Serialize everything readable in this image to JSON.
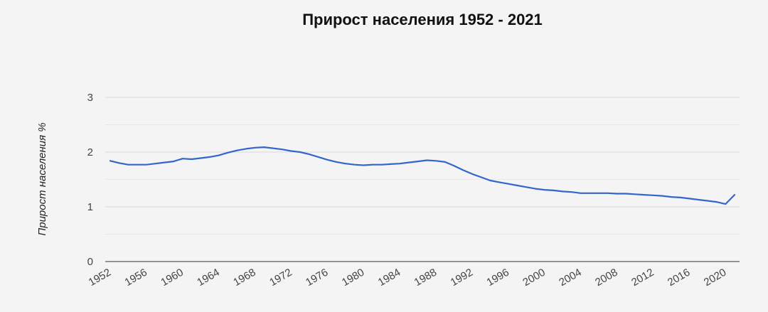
{
  "chart_data": {
    "type": "line",
    "title": "Прирост населения 1952 - 2021",
    "xlabel": "",
    "ylabel": "Прирост населения %",
    "ylim": [
      0,
      3
    ],
    "yticks": [
      "0",
      "1",
      "2",
      "3"
    ],
    "xticks": [
      "1952",
      "1956",
      "1960",
      "1964",
      "1968",
      "1972",
      "1976",
      "1980",
      "1984",
      "1988",
      "1992",
      "1996",
      "2000",
      "2004",
      "2008",
      "2012",
      "2016",
      "2020"
    ],
    "grid": true,
    "legend": "none",
    "colors": {
      "line": "#3366cc",
      "grid": "#d9d9d9",
      "axis": "#333333"
    },
    "x": [
      1952,
      1953,
      1954,
      1955,
      1956,
      1957,
      1958,
      1959,
      1960,
      1961,
      1962,
      1963,
      1964,
      1965,
      1966,
      1967,
      1968,
      1969,
      1970,
      1971,
      1972,
      1973,
      1974,
      1975,
      1976,
      1977,
      1978,
      1979,
      1980,
      1981,
      1982,
      1983,
      1984,
      1985,
      1986,
      1987,
      1988,
      1989,
      1990,
      1991,
      1992,
      1993,
      1994,
      1995,
      1996,
      1997,
      1998,
      1999,
      2000,
      2001,
      2002,
      2003,
      2004,
      2005,
      2006,
      2007,
      2008,
      2009,
      2010,
      2011,
      2012,
      2013,
      2014,
      2015,
      2016,
      2017,
      2018,
      2019,
      2020,
      2021
    ],
    "series": [
      {
        "values": [
          1.84,
          1.8,
          1.77,
          1.77,
          1.77,
          1.79,
          1.81,
          1.83,
          1.88,
          1.87,
          1.89,
          1.91,
          1.94,
          1.99,
          2.03,
          2.06,
          2.08,
          2.09,
          2.07,
          2.05,
          2.02,
          2.0,
          1.96,
          1.91,
          1.86,
          1.82,
          1.79,
          1.77,
          1.76,
          1.77,
          1.77,
          1.78,
          1.79,
          1.81,
          1.83,
          1.85,
          1.84,
          1.82,
          1.75,
          1.67,
          1.6,
          1.54,
          1.48,
          1.45,
          1.42,
          1.39,
          1.36,
          1.33,
          1.31,
          1.3,
          1.28,
          1.27,
          1.25,
          1.25,
          1.25,
          1.25,
          1.24,
          1.24,
          1.23,
          1.22,
          1.21,
          1.2,
          1.18,
          1.17,
          1.15,
          1.13,
          1.11,
          1.09,
          1.05,
          1.22
        ]
      }
    ]
  }
}
